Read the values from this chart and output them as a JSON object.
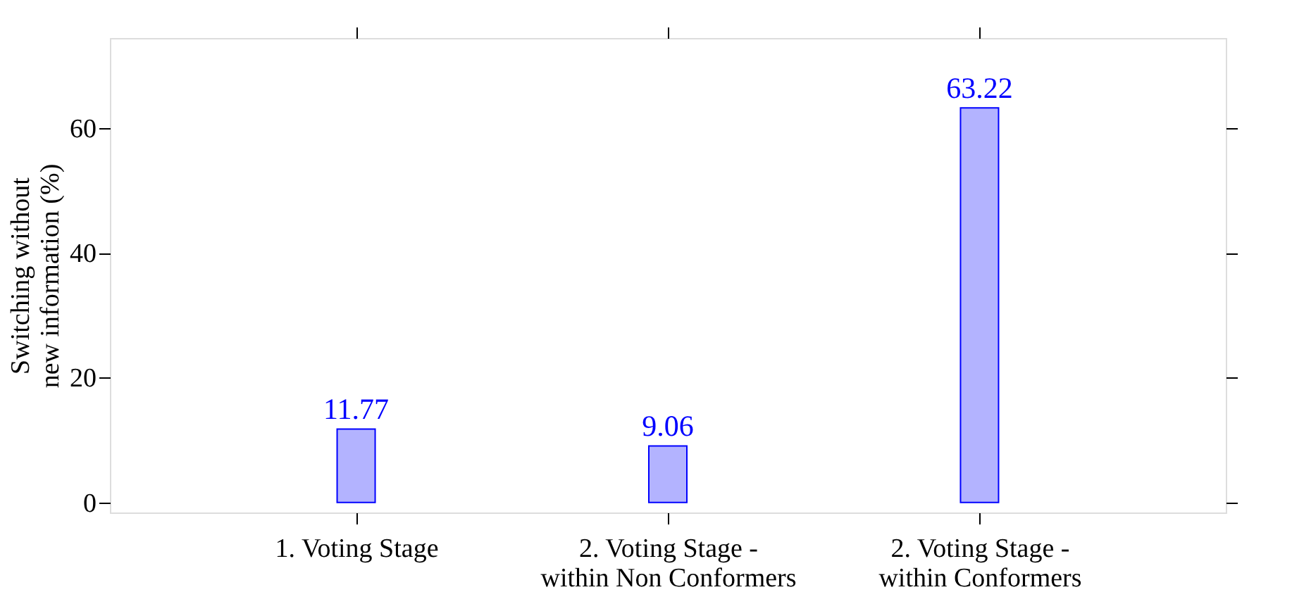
{
  "chart_data": {
    "type": "bar",
    "ylabel": "Switching without\nnew information (%)",
    "categories": [
      "1.  Voting Stage",
      "2.  Voting Stage -\nwithin Non Conformers",
      "2.  Voting Stage -\nwithin Conformers"
    ],
    "values": [
      11.77,
      9.06,
      63.22
    ],
    "color": "#b3b3ff",
    "data_labels": true,
    "ylim": [
      -1.6,
      74.4
    ],
    "yticks": [
      0,
      20,
      40,
      60
    ],
    "grid": false
  }
}
